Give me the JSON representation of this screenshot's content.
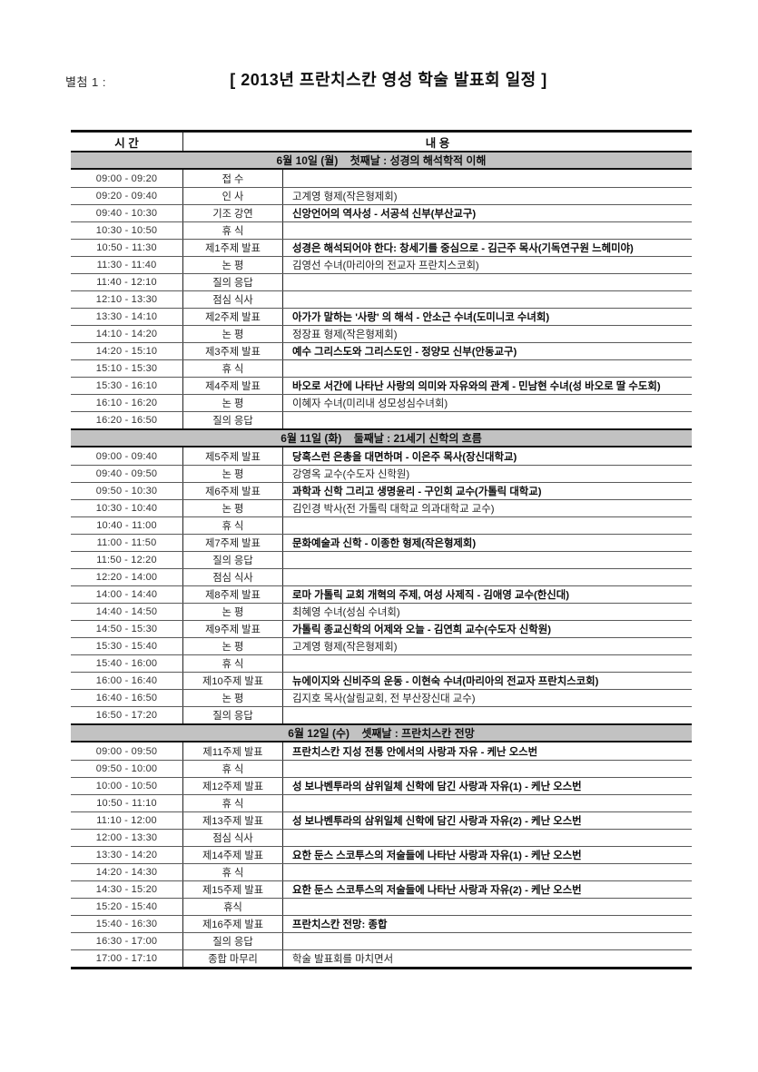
{
  "page": {
    "attachment_label": "별첨 1 :",
    "title": "[ 2013년 프란치스칸 영성 학술 발표회 일정 ]"
  },
  "table": {
    "col_headers": [
      "시 간",
      "내 용"
    ],
    "sections": [
      {
        "header": "6월 10일 (월)    첫째날 : 성경의 해석학적 이해",
        "rows": [
          {
            "time": "09:00 - 09:20",
            "category": "접 수",
            "content": "",
            "bold": false
          },
          {
            "time": "09:20 - 09:40",
            "category": "인 사",
            "content": "고계영 형제(작은형제회)",
            "bold": false
          },
          {
            "time": "09:40 - 10:30",
            "category": "기조 강연",
            "content": "신앙언어의 역사성 - 서공석 신부(부산교구)",
            "bold": true
          },
          {
            "time": "10:30 - 10:50",
            "category": "휴 식",
            "content": "",
            "bold": false
          },
          {
            "time": "10:50 - 11:30",
            "category": "제1주제 발표",
            "content": "성경은 해석되어야 한다: 창세기를 중심으로 - 김근주 목사(기독연구원 느헤미야)",
            "bold": true
          },
          {
            "time": "11:30 - 11:40",
            "category": "논 평",
            "content": "김영선 수녀(마리아의 전교자 프란치스코회)",
            "bold": false
          },
          {
            "time": "11:40 - 12:10",
            "category": "질의 응답",
            "content": "",
            "bold": false
          },
          {
            "time": "12:10 - 13:30",
            "category": "점심 식사",
            "content": "",
            "bold": false
          },
          {
            "time": "13:30 - 14:10",
            "category": "제2주제 발표",
            "content": "아가가 말하는 '사랑' 의 해석 - 안소근 수녀(도미니코 수녀회)",
            "bold": true
          },
          {
            "time": "14:10 - 14:20",
            "category": "논 평",
            "content": "정장표 형제(작은형제회)",
            "bold": false
          },
          {
            "time": "14:20 - 15:10",
            "category": "제3주제 발표",
            "content": "예수 그리스도와 그리스도인 - 정양모 신부(안동교구)",
            "bold": true
          },
          {
            "time": "15:10 - 15:30",
            "category": "휴 식",
            "content": "",
            "bold": false
          },
          {
            "time": "15:30 - 16:10",
            "category": "제4주제 발표",
            "content": "바오로 서간에 나타난 사랑의 의미와 자유와의 관계 - 민남현 수녀(성 바오로 딸 수도회)",
            "bold": true
          },
          {
            "time": "16:10 - 16:20",
            "category": "논 평",
            "content": "이혜자 수녀(미리내 성모성심수녀회)",
            "bold": false
          },
          {
            "time": "16:20 - 16:50",
            "category": "질의 응답",
            "content": "",
            "bold": false
          }
        ]
      },
      {
        "header": "6월 11일 (화)    둘째날 : 21세기 신학의 흐름",
        "rows": [
          {
            "time": "09:00 - 09:40",
            "category": "제5주제 발표",
            "content": "당혹스런 은총을 대면하며 - 이은주 목사(장신대학교)",
            "bold": true
          },
          {
            "time": "09:40 - 09:50",
            "category": "논 평",
            "content": "강영옥 교수(수도자 신학원)",
            "bold": false
          },
          {
            "time": "09:50 - 10:30",
            "category": "제6주제 발표",
            "content": "과학과 신학 그리고 생명윤리 - 구인회 교수(가톨릭 대학교)",
            "bold": true
          },
          {
            "time": "10:30 - 10:40",
            "category": "논 평",
            "content": "김인경 박사(전 가톨릭 대학교 의과대학교 교수)",
            "bold": false
          },
          {
            "time": "10:40 - 11:00",
            "category": "휴 식",
            "content": "",
            "bold": false
          },
          {
            "time": "11:00 - 11:50",
            "category": "제7주제 발표",
            "content": "문화예술과 신학 - 이종한 형제(작은형제회)",
            "bold": true
          },
          {
            "time": "11:50 - 12:20",
            "category": "질의 응답",
            "content": "",
            "bold": false
          },
          {
            "time": "12:20 - 14:00",
            "category": "점심 식사",
            "content": "",
            "bold": false
          },
          {
            "time": "14:00 - 14:40",
            "category": "제8주제 발표",
            "content": "로마 가톨릭 교회 개혁의 주제, 여성 사제직 - 김애영 교수(한신대)",
            "bold": true
          },
          {
            "time": "14:40 - 14:50",
            "category": "논 평",
            "content": "최혜영 수녀(성심 수녀회)",
            "bold": false
          },
          {
            "time": "14:50 - 15:30",
            "category": "제9주제 발표",
            "content": "가톨릭 종교신학의 어제와 오늘 - 김연희 교수(수도자 신학원)",
            "bold": true
          },
          {
            "time": "15:30 - 15:40",
            "category": "논 평",
            "content": "고계영 형제(작은형제회)",
            "bold": false
          },
          {
            "time": "15:40 - 16:00",
            "category": "휴 식",
            "content": "",
            "bold": false
          },
          {
            "time": "16:00 - 16:40",
            "category": "제10주제 발표",
            "content": "뉴에이지와 신비주의 운동 - 이현숙 수녀(마리아의 전교자 프란치스코회)",
            "bold": true
          },
          {
            "time": "16:40 - 16:50",
            "category": "논 평",
            "content": "김지호 목사(살림교회, 전 부산장신대 교수)",
            "bold": false
          },
          {
            "time": "16:50 - 17:20",
            "category": "질의 응답",
            "content": "",
            "bold": false
          }
        ]
      },
      {
        "header": "6월 12일 (수)    셋째날 : 프란치스칸 전망",
        "rows": [
          {
            "time": "09:00 - 09:50",
            "category": "제11주제 발표",
            "content": "프란치스칸 지성 전통 안에서의 사랑과 자유 - 케난 오스번",
            "bold": true
          },
          {
            "time": "09:50 - 10:00",
            "category": "휴 식",
            "content": "",
            "bold": false
          },
          {
            "time": "10:00 - 10:50",
            "category": "제12주제 발표",
            "content": "성 보나벤투라의 삼위일체 신학에 담긴 사랑과 자유(1) - 케난 오스번",
            "bold": true
          },
          {
            "time": "10:50 - 11:10",
            "category": "휴 식",
            "content": "",
            "bold": false
          },
          {
            "time": "11:10 - 12:00",
            "category": "제13주제 발표",
            "content": "성 보나벤투라의 삼위일체 신학에 담긴 사랑과 자유(2) - 케난 오스번",
            "bold": true
          },
          {
            "time": "12:00 - 13:30",
            "category": "점심 식사",
            "content": "",
            "bold": false
          },
          {
            "time": "13:30 - 14:20",
            "category": "제14주제 발표",
            "content": "요한 둔스 스코투스의 저술들에 나타난 사랑과 자유(1) - 케난 오스번",
            "bold": true
          },
          {
            "time": "14:20 - 14:30",
            "category": "휴 식",
            "content": "",
            "bold": false
          },
          {
            "time": "14:30 - 15:20",
            "category": "제15주제 발표",
            "content": "요한 둔스 스코투스의 저술들에 나타난 사랑과 자유(2) - 케난 오스번",
            "bold": true
          },
          {
            "time": "15:20 - 15:40",
            "category": "휴식",
            "content": "",
            "bold": false
          },
          {
            "time": "15:40 - 16:30",
            "category": "제16주제 발표",
            "content": "프란치스칸 전망: 종합",
            "bold": true
          },
          {
            "time": "16:30 - 17:00",
            "category": "질의 응답",
            "content": "",
            "bold": false
          },
          {
            "time": "17:00 - 17:10",
            "category": "종합 마무리",
            "content": "학술 발표회를 마치면서",
            "bold": false
          }
        ]
      }
    ]
  }
}
